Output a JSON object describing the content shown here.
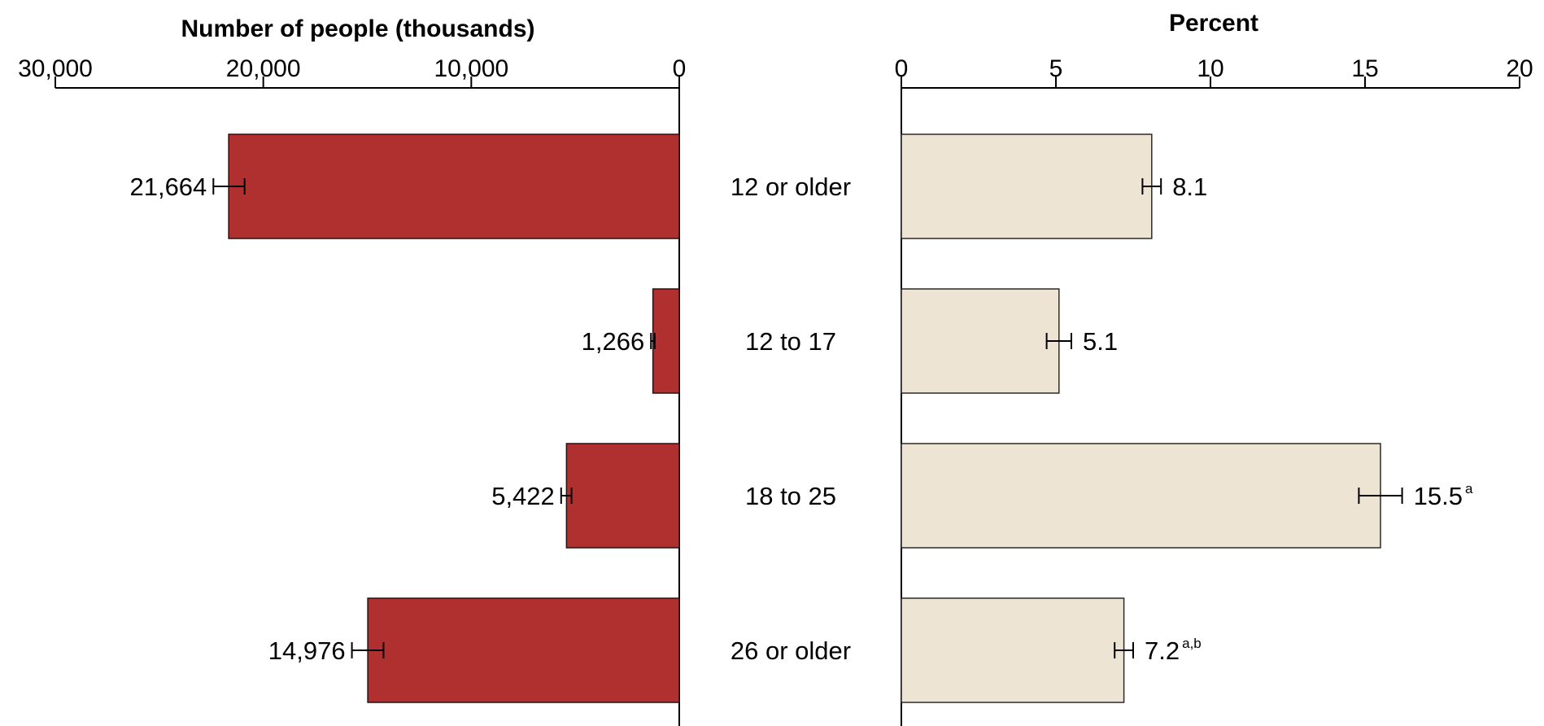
{
  "chart_data": [
    {
      "type": "bar",
      "orientation": "horizontal",
      "direction": "right-to-left",
      "xlabel": "Number of people (thousands)",
      "xlim": [
        0,
        30000
      ],
      "ticks": [
        "30,000",
        "20,000",
        "10,000",
        "0"
      ],
      "tick_values": [
        30000,
        20000,
        10000,
        0
      ],
      "categories": [
        "12 or older",
        "12 to 17",
        "18 to 25",
        "26 or older"
      ],
      "values": [
        21664,
        1266,
        5422,
        14976
      ],
      "value_labels": [
        "21,664",
        "1,266",
        "5,422",
        "14,976"
      ],
      "error_low": [
        20900,
        1180,
        5180,
        14220
      ],
      "error_high": [
        22400,
        1360,
        5680,
        15740
      ],
      "bar_color": "#B03030"
    },
    {
      "type": "bar",
      "orientation": "horizontal",
      "direction": "left-to-right",
      "xlabel": "Percent",
      "xlim": [
        0,
        20
      ],
      "ticks": [
        "0",
        "5",
        "10",
        "15",
        "20"
      ],
      "tick_values": [
        0,
        5,
        10,
        15,
        20
      ],
      "categories": [
        "12 or older",
        "12 to 17",
        "18 to 25",
        "26 or older"
      ],
      "values": [
        8.1,
        5.1,
        15.5,
        7.2
      ],
      "value_labels": [
        "8.1",
        "5.1",
        "15.5",
        "7.2"
      ],
      "superscripts": [
        "",
        "",
        "a",
        "a,b"
      ],
      "error_low": [
        7.8,
        4.7,
        14.8,
        6.9
      ],
      "error_high": [
        8.4,
        5.5,
        16.2,
        7.5
      ],
      "bar_color": "#EDE4D3"
    }
  ]
}
